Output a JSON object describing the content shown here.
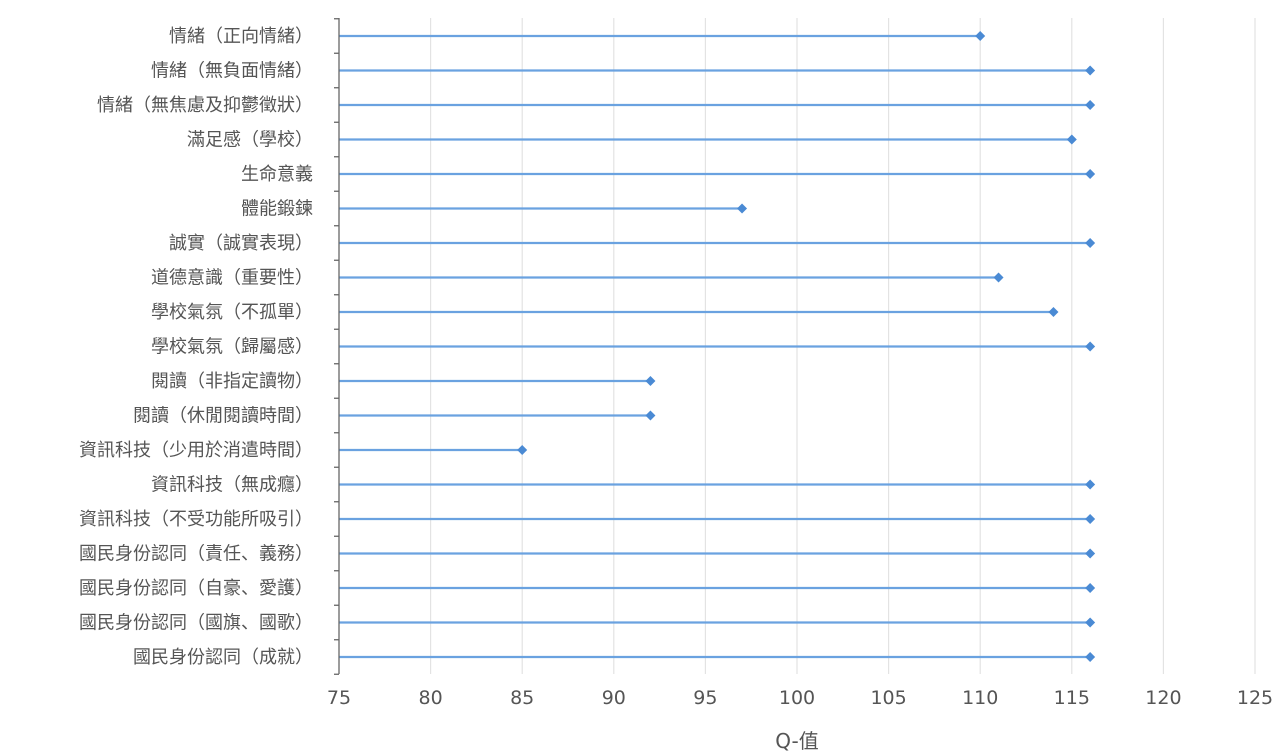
{
  "chart_data": {
    "type": "bar",
    "style": "lollipop",
    "orientation": "horizontal",
    "title": "",
    "xlabel": "Q-值",
    "ylabel": "",
    "xlim": [
      75,
      125
    ],
    "xticks": [
      "75",
      "80",
      "85",
      "90",
      "95",
      "100",
      "105",
      "110",
      "115",
      "120",
      "125"
    ],
    "grid": true,
    "legend": "none",
    "colors": {
      "series": "#4a8ad4",
      "stem": "#6aa2e0",
      "grid": "#e3e3e3",
      "axis": "#666666",
      "text": "#555555"
    },
    "categories": [
      "情緒（正向情緒）",
      "情緒（無負面情緒）",
      "情緒（無焦慮及抑鬱徵狀）",
      "滿足感（學校）",
      "生命意義",
      "體能鍛鍊",
      "誠實（誠實表現）",
      "道德意識（重要性）",
      "學校氣氛（不孤單）",
      "學校氣氛（歸屬感）",
      "閱讀（非指定讀物）",
      "閱讀（休閒閱讀時間）",
      "資訊科技（少用於消遣時間）",
      "資訊科技（無成癮）",
      "資訊科技（不受功能所吸引）",
      "國民身份認同（責任、義務）",
      "國民身份認同（自豪、愛護）",
      "國民身份認同（國旗、國歌）",
      "國民身份認同（成就）"
    ],
    "values": [
      110,
      116,
      116,
      115,
      116,
      97,
      116,
      111,
      114,
      116,
      92,
      92,
      85,
      116,
      116,
      116,
      116,
      116,
      116
    ]
  }
}
